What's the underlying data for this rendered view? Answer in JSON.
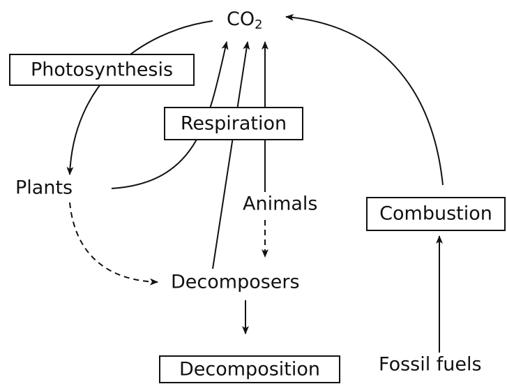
{
  "nodes": [
    {
      "id": "co2",
      "label": "CO",
      "subscript": "2"
    },
    {
      "id": "photosynthesis",
      "label": "Photosynthesis"
    },
    {
      "id": "respiration",
      "label": "Respiration"
    },
    {
      "id": "plants",
      "label": "Plants"
    },
    {
      "id": "animals",
      "label": "Animals"
    },
    {
      "id": "combustion",
      "label": "Combustion"
    },
    {
      "id": "decomposers",
      "label": "Decomposers"
    },
    {
      "id": "decomposition",
      "label": "Decomposition"
    },
    {
      "id": "fossil-fuels",
      "label": "Fossil fuels"
    }
  ]
}
